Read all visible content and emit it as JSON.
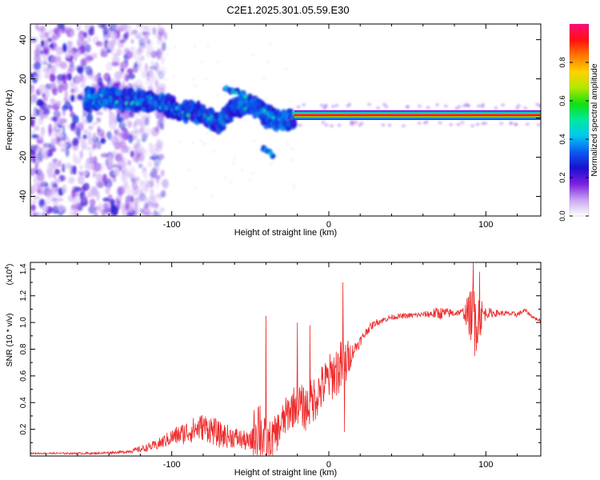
{
  "title": "C2E1.2025.301.05.59.E30",
  "chart_data": [
    {
      "type": "heatmap",
      "title": "C2E1.2025.301.05.59.E30",
      "xlabel": "Height of straight line (km)",
      "ylabel": "Frequency (Hz)",
      "xlim": [
        -190,
        135
      ],
      "ylim": [
        -50,
        48
      ],
      "xticks": [
        -100,
        0,
        100
      ],
      "xtick_labels": [
        "-100",
        "0",
        "100"
      ],
      "yticks": [
        -40,
        -20,
        0,
        20,
        40
      ],
      "ytick_labels": [
        "-40",
        "-20",
        "0",
        "20",
        "40"
      ],
      "colorbar": {
        "label": "Normalized spectral amplitude",
        "range": [
          0,
          1
        ],
        "ticks": [
          0.0,
          0.2,
          0.4,
          0.6,
          0.8
        ],
        "tick_labels": [
          "0.0",
          "0.2",
          "0.4",
          "0.6",
          "0.8"
        ],
        "colormap": [
          "#ffffff",
          "#c9a5f3",
          "#7b1fe0",
          "#1a0fd0",
          "#0a5cf0",
          "#00c8f0",
          "#00e8a0",
          "#12e012",
          "#b0e800",
          "#ffd200",
          "#ff7a00",
          "#ff1010",
          "#ff0a7e"
        ]
      },
      "noise_region": {
        "x_range": [
          -190,
          -110
        ],
        "y_range": [
          -50,
          48
        ],
        "amplitude": [
          0.05,
          0.3
        ]
      },
      "ridge": [
        {
          "x": -155,
          "y": 10,
          "amp": 0.35
        },
        {
          "x": -140,
          "y": 10,
          "amp": 0.4
        },
        {
          "x": -125,
          "y": 9,
          "amp": 0.45
        },
        {
          "x": -110,
          "y": 8,
          "amp": 0.4
        },
        {
          "x": -95,
          "y": 4,
          "amp": 0.45
        },
        {
          "x": -80,
          "y": 2,
          "amp": 0.5
        },
        {
          "x": -70,
          "y": -2,
          "amp": 0.45
        },
        {
          "x": -60,
          "y": 5,
          "amp": 0.5
        },
        {
          "x": -50,
          "y": 8,
          "amp": 0.45
        },
        {
          "x": -40,
          "y": 1,
          "amp": 0.4
        },
        {
          "x": -30,
          "y": -2,
          "amp": 0.35
        },
        {
          "x": -22,
          "y": 1,
          "amp": 0.45
        }
      ],
      "ridge_branches": [
        {
          "name": "upper branch",
          "points": [
            {
              "x": -66,
              "y": 15
            },
            {
              "x": -55,
              "y": 12
            },
            {
              "x": -45,
              "y": 6
            },
            {
              "x": -35,
              "y": 0
            }
          ]
        },
        {
          "name": "lower branch",
          "points": [
            {
              "x": -42,
              "y": -16
            },
            {
              "x": -35,
              "y": -19
            }
          ]
        }
      ],
      "steady_band": {
        "x_range": [
          -22,
          135
        ],
        "y_center": 1.5,
        "half_width": 2.5,
        "amp_core": 1.0
      },
      "band_spots": [
        {
          "x": 10,
          "y": 2
        },
        {
          "x": 90,
          "y": 2
        },
        {
          "x": 95,
          "y": 2
        },
        {
          "x": 115,
          "y": 2
        }
      ]
    },
    {
      "type": "line",
      "xlabel": "Height of straight line (km)",
      "ylabel": "SNR (10 * v/v)",
      "y_scale_label": "(x10",
      "y_scale_exponent": "4",
      "xlim": [
        -190,
        135
      ],
      "ylim": [
        0,
        1.45
      ],
      "xticks": [
        -100,
        0,
        100
      ],
      "xtick_labels": [
        "-100",
        "0",
        "100"
      ],
      "yticks": [
        0.2,
        0.4,
        0.6,
        0.8,
        1.0,
        1.2,
        1.4
      ],
      "ytick_labels": [
        "0.2",
        "0.4",
        "0.6",
        "0.8",
        "1.0",
        "1.2",
        "1.4"
      ],
      "series": [
        {
          "name": "SNR",
          "color": "#ee2a2a",
          "envelope": {
            "x": [
              -190,
              -150,
              -130,
              -120,
              -110,
              -100,
              -90,
              -80,
              -75,
              -70,
              -60,
              -50,
              -45,
              -40,
              -35,
              -30,
              -25,
              -20,
              -15,
              -10,
              -5,
              0,
              5,
              10,
              15,
              20,
              25,
              30,
              40,
              50,
              60,
              70,
              80,
              85,
              90,
              95,
              100,
              110,
              120,
              125,
              130,
              135
            ],
            "y": [
              0.02,
              0.02,
              0.03,
              0.05,
              0.08,
              0.14,
              0.18,
              0.22,
              0.2,
              0.16,
              0.14,
              0.1,
              0.25,
              0.08,
              0.14,
              0.24,
              0.34,
              0.4,
              0.35,
              0.42,
              0.5,
              0.58,
              0.64,
              0.68,
              0.78,
              0.86,
              0.95,
              1.0,
              1.04,
              1.05,
              1.06,
              1.07,
              1.07,
              1.08,
              1.06,
              1.04,
              1.07,
              1.07,
              1.06,
              1.09,
              1.04,
              1.01
            ]
          },
          "noise_amplitude": {
            "x": [
              -190,
              -130,
              -115,
              -105,
              -90,
              -75,
              -60,
              -50,
              -45,
              -40,
              -30,
              -20,
              -10,
              0,
              10,
              15,
              20,
              30,
              40,
              60,
              70,
              80,
              85,
              90,
              93,
              96,
              100,
              110,
              120,
              135
            ],
            "y": [
              0.005,
              0.01,
              0.03,
              0.05,
              0.09,
              0.11,
              0.08,
              0.07,
              0.3,
              0.16,
              0.14,
              0.16,
              0.18,
              0.18,
              0.22,
              0.06,
              0.04,
              0.025,
              0.02,
              0.02,
              0.05,
              0.03,
              0.02,
              0.18,
              0.3,
              0.18,
              0.04,
              0.02,
              0.02,
              0.01
            ]
          },
          "spikes": [
            {
              "x": -20,
              "y": 1.0
            },
            {
              "x": -12,
              "y": 0.98
            },
            {
              "x": 9,
              "y": 1.3
            },
            {
              "x": 10,
              "y": 0.18
            },
            {
              "x": -40,
              "y": 0.85
            },
            {
              "x": -40,
              "y": 1.05
            },
            {
              "x": 92,
              "y": 1.45
            },
            {
              "x": 93,
              "y": 0.75
            },
            {
              "x": 96,
              "y": 1.38
            }
          ]
        }
      ]
    }
  ]
}
